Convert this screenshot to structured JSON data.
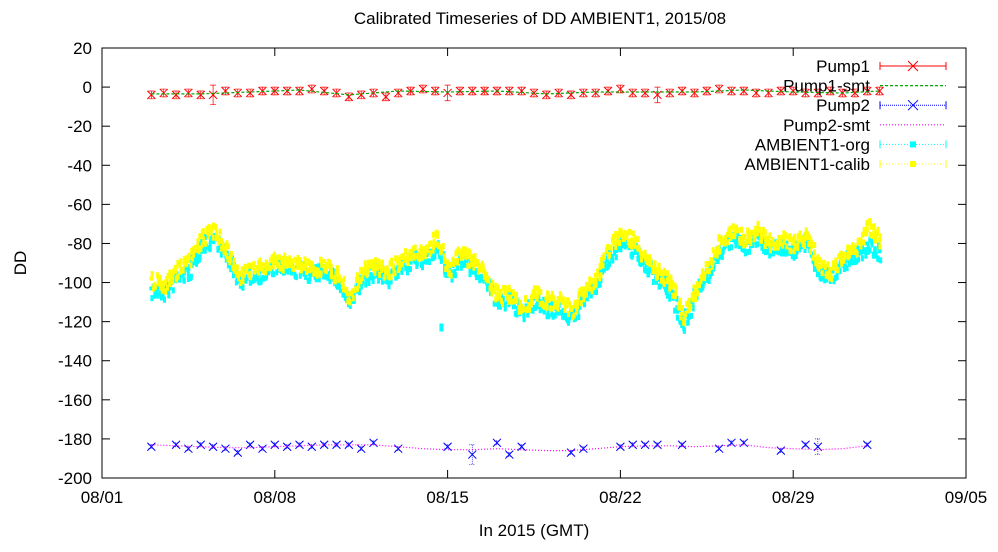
{
  "chart_data": {
    "type": "scatter",
    "title": "Calibrated Timeseries of DD AMBIENT1, 2015/08",
    "xlabel": "In 2015 (GMT)",
    "ylabel": "DD",
    "xlim": [
      "2015-08-01",
      "2015-09-05"
    ],
    "ylim": [
      -200,
      20
    ],
    "xticks": [
      {
        "date": "2015-08-01",
        "label": "08/01"
      },
      {
        "date": "2015-08-08",
        "label": "08/08"
      },
      {
        "date": "2015-08-15",
        "label": "08/15"
      },
      {
        "date": "2015-08-22",
        "label": "08/22"
      },
      {
        "date": "2015-08-29",
        "label": "08/29"
      },
      {
        "date": "2015-09-05",
        "label": "09/05"
      }
    ],
    "yticks": [
      20,
      0,
      -20,
      -40,
      -60,
      -80,
      -100,
      -120,
      -140,
      -160,
      -180,
      -200
    ],
    "grid": false,
    "legend_position": "top-right",
    "series": [
      {
        "name": "Pump1",
        "color": "#ff0000",
        "style": "points-errorbars",
        "marker": "x",
        "x": [
          "2015-08-03",
          "2015-08-03 12:00",
          "2015-08-04",
          "2015-08-04 12:00",
          "2015-08-05",
          "2015-08-05 12:00",
          "2015-08-06",
          "2015-08-06 12:00",
          "2015-08-07",
          "2015-08-07 12:00",
          "2015-08-08",
          "2015-08-08 12:00",
          "2015-08-09",
          "2015-08-09 12:00",
          "2015-08-10",
          "2015-08-10 12:00",
          "2015-08-11",
          "2015-08-11 12:00",
          "2015-08-12",
          "2015-08-12 12:00",
          "2015-08-13",
          "2015-08-13 12:00",
          "2015-08-14",
          "2015-08-14 12:00",
          "2015-08-15",
          "2015-08-15 12:00",
          "2015-08-16",
          "2015-08-16 12:00",
          "2015-08-17",
          "2015-08-17 12:00",
          "2015-08-18",
          "2015-08-18 12:00",
          "2015-08-19",
          "2015-08-19 12:00",
          "2015-08-20",
          "2015-08-20 12:00",
          "2015-08-21",
          "2015-08-21 12:00",
          "2015-08-22",
          "2015-08-22 12:00",
          "2015-08-23",
          "2015-08-23 12:00",
          "2015-08-24",
          "2015-08-24 12:00",
          "2015-08-25",
          "2015-08-25 12:00",
          "2015-08-26",
          "2015-08-26 12:00",
          "2015-08-27",
          "2015-08-27 12:00",
          "2015-08-28",
          "2015-08-28 12:00",
          "2015-08-29",
          "2015-08-29 12:00",
          "2015-08-30",
          "2015-08-30 12:00",
          "2015-08-31",
          "2015-08-31 12:00",
          "2015-09-01",
          "2015-09-01 12:00"
        ],
        "y": [
          -4,
          -3,
          -4,
          -3,
          -4,
          -4,
          -2,
          -3,
          -3,
          -2,
          -2,
          -2,
          -2,
          -1,
          -2,
          -3,
          -5,
          -4,
          -3,
          -5,
          -3,
          -2,
          -1,
          -2,
          -3,
          -2,
          -2,
          -2,
          -2,
          -2,
          -2,
          -3,
          -4,
          -3,
          -4,
          -3,
          -3,
          -2,
          -1,
          -3,
          -3,
          -4,
          -3,
          -2,
          -3,
          -2,
          -1,
          -2,
          -2,
          -3,
          -3,
          -2,
          -2,
          -3,
          -3,
          -2,
          -3,
          -3,
          -2,
          -2
        ],
        "yerr": [
          2,
          2,
          2,
          2,
          2,
          5,
          2,
          2,
          2,
          2,
          2,
          2,
          2,
          2,
          2,
          2,
          2,
          2,
          2,
          2,
          2,
          2,
          2,
          2,
          4,
          2,
          2,
          2,
          2,
          2,
          2,
          2,
          2,
          2,
          2,
          2,
          2,
          2,
          2,
          2,
          2,
          4,
          2,
          2,
          2,
          2,
          2,
          2,
          2,
          2,
          2,
          2,
          2,
          2,
          2,
          2,
          2,
          2,
          2,
          2
        ]
      },
      {
        "name": "Pump1-smt",
        "color": "#00aa00",
        "style": "line-dashed",
        "x": [
          "2015-08-03",
          "2015-08-05",
          "2015-08-07",
          "2015-08-09",
          "2015-08-11",
          "2015-08-13",
          "2015-08-15",
          "2015-08-17",
          "2015-08-19",
          "2015-08-21",
          "2015-08-23",
          "2015-08-25",
          "2015-08-27",
          "2015-08-29",
          "2015-08-31",
          "2015-09-01 12:00"
        ],
        "y": [
          -3.5,
          -3.5,
          -2.5,
          -1.5,
          -4,
          -2,
          -2.5,
          -2,
          -3.5,
          -2.5,
          -2.5,
          -2.5,
          -1.5,
          -2.5,
          -3,
          -2
        ]
      },
      {
        "name": "Pump2",
        "color": "#0000ff",
        "style": "points-errorbars",
        "marker": "x",
        "x": [
          "2015-08-03",
          "2015-08-04",
          "2015-08-04 12:00",
          "2015-08-05",
          "2015-08-05 12:00",
          "2015-08-06",
          "2015-08-06 12:00",
          "2015-08-07",
          "2015-08-07 12:00",
          "2015-08-08",
          "2015-08-08 12:00",
          "2015-08-09",
          "2015-08-09 12:00",
          "2015-08-10",
          "2015-08-10 12:00",
          "2015-08-11",
          "2015-08-11 12:00",
          "2015-08-12",
          "2015-08-13",
          "2015-08-15",
          "2015-08-16",
          "2015-08-17",
          "2015-08-17 12:00",
          "2015-08-18",
          "2015-08-20",
          "2015-08-20 12:00",
          "2015-08-22",
          "2015-08-22 12:00",
          "2015-08-23",
          "2015-08-23 12:00",
          "2015-08-24 12:00",
          "2015-08-26",
          "2015-08-26 12:00",
          "2015-08-27",
          "2015-08-28 12:00",
          "2015-08-29 12:00",
          "2015-08-30",
          "2015-09-01"
        ],
        "y": [
          -184,
          -183,
          -185,
          -183,
          -184,
          -185,
          -187,
          -183,
          -185,
          -183,
          -184,
          -183,
          -184,
          -183,
          -183,
          -183,
          -185,
          -182,
          -185,
          -184,
          -188,
          -182,
          -188,
          -184,
          -187,
          -185,
          -184,
          -183,
          -183,
          -183,
          -183,
          -185,
          -182,
          -182,
          -186,
          -183,
          -184,
          -183
        ],
        "yerr": [
          1,
          1,
          1,
          1,
          1,
          1,
          1,
          1,
          1,
          1,
          1,
          1,
          1,
          1,
          1,
          1,
          1,
          1,
          1,
          1,
          5,
          1,
          1,
          1,
          1,
          1,
          1,
          1,
          1,
          1,
          1,
          1,
          1,
          1,
          1,
          1,
          4,
          1
        ]
      },
      {
        "name": "Pump2-smt",
        "color": "#ff00ff",
        "style": "line-dotted",
        "x": [
          "2015-08-03",
          "2015-08-04",
          "2015-08-05",
          "2015-08-06",
          "2015-08-07",
          "2015-08-08",
          "2015-08-09",
          "2015-08-10",
          "2015-08-11",
          "2015-08-12",
          "2015-08-13",
          "2015-08-14",
          "2015-08-15",
          "2015-08-16",
          "2015-08-17",
          "2015-08-18",
          "2015-08-19",
          "2015-08-20",
          "2015-08-21",
          "2015-08-22",
          "2015-08-23",
          "2015-08-24",
          "2015-08-25",
          "2015-08-26",
          "2015-08-27",
          "2015-08-28",
          "2015-08-29",
          "2015-08-30",
          "2015-08-31",
          "2015-09-01"
        ],
        "y": [
          -183,
          -183.5,
          -184,
          -184.5,
          -184.5,
          -184,
          -183.5,
          -183,
          -183,
          -183,
          -184,
          -185,
          -185.5,
          -185.5,
          -185,
          -185.5,
          -186,
          -186,
          -185,
          -184,
          -183.5,
          -183.5,
          -184,
          -183.5,
          -183,
          -184.5,
          -185,
          -185.5,
          -185,
          -183.5
        ]
      },
      {
        "name": "AMBIENT1-org",
        "color": "#00ffff",
        "style": "dense-points",
        "marker": "*",
        "x": [
          "2015-08-03",
          "2015-08-03 12:00",
          "2015-08-04",
          "2015-08-04 12:00",
          "2015-08-05",
          "2015-08-05 12:00",
          "2015-08-06",
          "2015-08-06 12:00",
          "2015-08-07",
          "2015-08-07 12:00",
          "2015-08-08",
          "2015-08-08 12:00",
          "2015-08-09",
          "2015-08-09 12:00",
          "2015-08-10",
          "2015-08-10 12:00",
          "2015-08-11",
          "2015-08-11 12:00",
          "2015-08-12",
          "2015-08-12 12:00",
          "2015-08-13",
          "2015-08-13 12:00",
          "2015-08-14",
          "2015-08-14 12:00",
          "2015-08-15",
          "2015-08-15 12:00",
          "2015-08-16",
          "2015-08-16 12:00",
          "2015-08-17",
          "2015-08-17 12:00",
          "2015-08-18",
          "2015-08-18 12:00",
          "2015-08-19",
          "2015-08-19 12:00",
          "2015-08-20",
          "2015-08-20 12:00",
          "2015-08-21",
          "2015-08-21 12:00",
          "2015-08-22",
          "2015-08-22 12:00",
          "2015-08-23",
          "2015-08-23 12:00",
          "2015-08-24",
          "2015-08-24 12:00",
          "2015-08-25",
          "2015-08-25 12:00",
          "2015-08-26",
          "2015-08-26 12:00",
          "2015-08-27",
          "2015-08-27 12:00",
          "2015-08-28",
          "2015-08-28 12:00",
          "2015-08-29",
          "2015-08-29 12:00",
          "2015-08-30",
          "2015-08-30 12:00",
          "2015-08-31",
          "2015-08-31 12:00",
          "2015-09-01",
          "2015-09-01 12:00"
        ],
        "y": [
          -103,
          -104,
          -96,
          -93,
          -80,
          -76,
          -85,
          -98,
          -95,
          -94,
          -90,
          -92,
          -92,
          -95,
          -92,
          -98,
          -110,
          -97,
          -93,
          -97,
          -92,
          -87,
          -88,
          -80,
          -96,
          -87,
          -92,
          -98,
          -110,
          -108,
          -115,
          -108,
          -112,
          -112,
          -117,
          -106,
          -100,
          -85,
          -78,
          -82,
          -90,
          -97,
          -104,
          -120,
          -105,
          -95,
          -82,
          -76,
          -80,
          -76,
          -81,
          -80,
          -82,
          -78,
          -93,
          -96,
          -88,
          -85,
          -80,
          -84
        ],
        "extra_points": [
          {
            "x": "2015-08-14 18:00",
            "y": -123
          }
        ]
      },
      {
        "name": "AMBIENT1-calib",
        "color": "#ffff00",
        "style": "dense-points",
        "marker": "*",
        "x": [
          "2015-08-03",
          "2015-08-03 12:00",
          "2015-08-04",
          "2015-08-04 12:00",
          "2015-08-05",
          "2015-08-05 12:00",
          "2015-08-06",
          "2015-08-06 12:00",
          "2015-08-07",
          "2015-08-07 12:00",
          "2015-08-08",
          "2015-08-08 12:00",
          "2015-08-09",
          "2015-08-09 12:00",
          "2015-08-10",
          "2015-08-10 12:00",
          "2015-08-11",
          "2015-08-11 12:00",
          "2015-08-12",
          "2015-08-12 12:00",
          "2015-08-13",
          "2015-08-13 12:00",
          "2015-08-14",
          "2015-08-14 12:00",
          "2015-08-15",
          "2015-08-15 12:00",
          "2015-08-16",
          "2015-08-16 12:00",
          "2015-08-17",
          "2015-08-17 12:00",
          "2015-08-18",
          "2015-08-18 12:00",
          "2015-08-19",
          "2015-08-19 12:00",
          "2015-08-20",
          "2015-08-20 12:00",
          "2015-08-21",
          "2015-08-21 12:00",
          "2015-08-22",
          "2015-08-22 12:00",
          "2015-08-23",
          "2015-08-23 12:00",
          "2015-08-24",
          "2015-08-24 12:00",
          "2015-08-25",
          "2015-08-25 12:00",
          "2015-08-26",
          "2015-08-26 12:00",
          "2015-08-27",
          "2015-08-27 12:00",
          "2015-08-28",
          "2015-08-28 12:00",
          "2015-08-29",
          "2015-08-29 12:00",
          "2015-08-30",
          "2015-08-30 12:00",
          "2015-08-31",
          "2015-08-31 12:00",
          "2015-09-01",
          "2015-09-01 12:00"
        ],
        "y": [
          -98,
          -100,
          -92,
          -88,
          -76,
          -72,
          -82,
          -95,
          -92,
          -91,
          -87,
          -89,
          -88,
          -92,
          -89,
          -95,
          -106,
          -93,
          -90,
          -93,
          -88,
          -84,
          -84,
          -76,
          -92,
          -84,
          -88,
          -95,
          -106,
          -104,
          -112,
          -105,
          -108,
          -108,
          -113,
          -103,
          -96,
          -82,
          -73,
          -78,
          -86,
          -93,
          -100,
          -116,
          -102,
          -91,
          -78,
          -72,
          -76,
          -72,
          -78,
          -77,
          -79,
          -75,
          -89,
          -93,
          -85,
          -81,
          -70,
          -78
        ]
      }
    ]
  }
}
